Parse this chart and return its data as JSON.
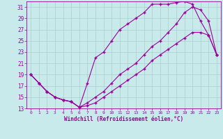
{
  "xlabel": "Windchill (Refroidissement éolien,°C)",
  "bg_color": "#c8eaea",
  "grid_color": "#aacccc",
  "line_color": "#990099",
  "xlim": [
    -0.5,
    23.5
  ],
  "ylim": [
    13,
    32
  ],
  "yticks": [
    13,
    15,
    17,
    19,
    21,
    23,
    25,
    27,
    29,
    31
  ],
  "xticks": [
    0,
    1,
    2,
    3,
    4,
    5,
    6,
    7,
    8,
    9,
    10,
    11,
    12,
    13,
    14,
    15,
    16,
    17,
    18,
    19,
    20,
    21,
    22,
    23
  ],
  "line1_x": [
    0,
    1,
    2,
    3,
    4,
    5,
    6,
    7,
    8,
    9,
    10,
    11,
    12,
    13,
    14,
    15,
    16,
    17,
    18,
    19,
    20,
    21,
    22,
    23
  ],
  "line1_y": [
    19,
    17.5,
    16.0,
    15.0,
    14.5,
    14.2,
    13.2,
    17.5,
    22.0,
    23.0,
    25.0,
    27.0,
    28.0,
    29.0,
    30.0,
    31.5,
    31.5,
    31.5,
    31.8,
    32.0,
    31.5,
    28.5,
    26.0,
    22.5
  ],
  "line2_x": [
    0,
    1,
    2,
    3,
    4,
    5,
    6,
    7,
    8,
    9,
    10,
    11,
    12,
    13,
    14,
    15,
    16,
    17,
    18,
    19,
    20,
    21,
    22,
    23
  ],
  "line2_y": [
    19,
    17.5,
    16.0,
    15.0,
    14.5,
    14.2,
    13.2,
    14.0,
    15.0,
    16.0,
    17.5,
    19.0,
    20.0,
    21.0,
    22.5,
    24.0,
    25.0,
    26.5,
    28.0,
    30.0,
    31.0,
    30.5,
    28.5,
    22.5
  ],
  "line3_x": [
    0,
    1,
    2,
    3,
    4,
    5,
    6,
    7,
    8,
    9,
    10,
    11,
    12,
    13,
    14,
    15,
    16,
    17,
    18,
    19,
    20,
    21,
    22,
    23
  ],
  "line3_y": [
    19,
    17.5,
    16.0,
    15.0,
    14.5,
    14.2,
    13.2,
    13.5,
    14.0,
    15.0,
    16.0,
    17.0,
    18.0,
    19.0,
    20.0,
    21.5,
    22.5,
    23.5,
    24.5,
    25.5,
    26.5,
    26.5,
    26.0,
    22.5
  ]
}
